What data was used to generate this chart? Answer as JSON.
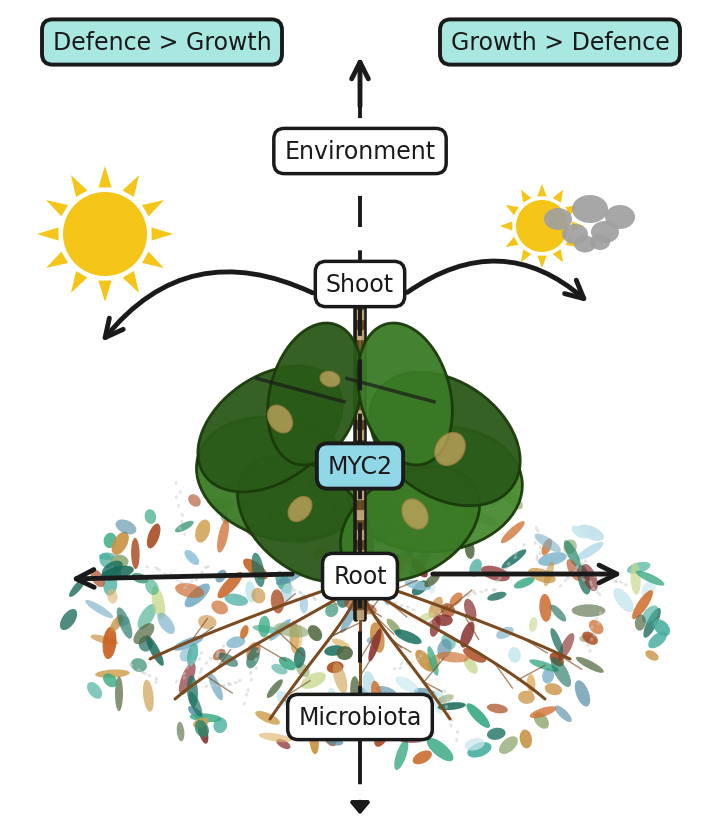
{
  "bg_color": "#ffffff",
  "box_teal_color": "#a8e8e0",
  "box_white_color": "#ffffff",
  "box_border_color": "#1a1a1a",
  "text_color": "#1a1a1a",
  "arrow_color": "#1a1a1a",
  "label_defence_growth": "Defence > Growth",
  "label_growth_defence": "Growth > Defence",
  "label_environment": "Environment",
  "label_shoot": "Shoot",
  "label_myc2": "MYC2",
  "label_root": "Root",
  "label_microbiota": "Microbiota",
  "sun_color": "#f5c518",
  "cloud_color": "#a0a0a0",
  "leaf_dark": "#2a5a18",
  "leaf_mid": "#3a7a25",
  "leaf_light": "#4a8a30",
  "spot_color": "#c8a860",
  "root_color": "#7a4a20",
  "stem_dark": "#1a1a1a",
  "stem_mid": "#3a2a10",
  "bact_colors": [
    "#1a6b5a",
    "#1a7060",
    "#2a8a6a",
    "#3aaa85",
    "#4ab0a0",
    "#5a90a8",
    "#7ab0c8",
    "#90c0d8",
    "#b0d8e8",
    "#c8e8f0",
    "#8a3030",
    "#aa4a20",
    "#c86020",
    "#d07030",
    "#c89040",
    "#d0a050",
    "#e0b870",
    "#c8d890",
    "#90a870",
    "#506840"
  ],
  "figsize": [
    7.2,
    8.37
  ],
  "dpi": 100
}
